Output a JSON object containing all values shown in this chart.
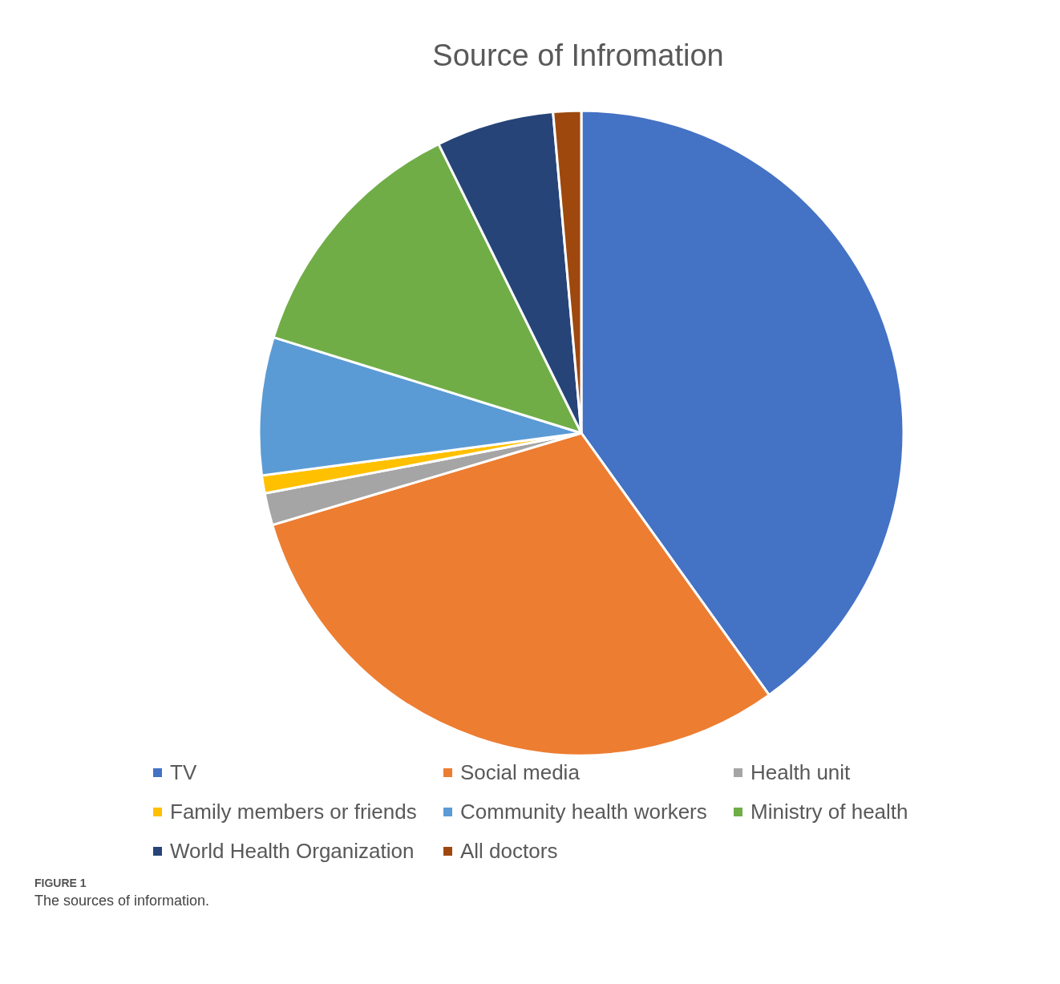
{
  "chart_data": {
    "type": "pie",
    "title": "Source of Infromation",
    "categories": [
      "TV",
      "Social media",
      "Health unit",
      "Family members or friends",
      "Community health workers",
      "Ministry of health",
      "World Health Organization",
      "All doctors"
    ],
    "values": [
      40.1,
      30.3,
      1.6,
      0.9,
      6.9,
      12.9,
      5.9,
      1.4
    ],
    "colors": [
      "#4472c4",
      "#ed7d31",
      "#a5a5a5",
      "#ffc000",
      "#5b9bd5",
      "#70ad47",
      "#264478",
      "#9e480e"
    ],
    "legend": "bottom",
    "annotations": [
      "FIGURE 1",
      "The sources of information."
    ]
  }
}
